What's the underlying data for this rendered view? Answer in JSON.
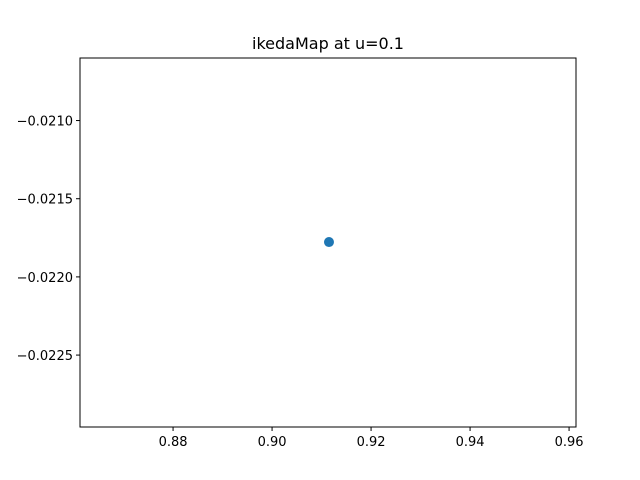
{
  "chart_data": {
    "type": "scatter",
    "title": "ikedaMap at u=0.1",
    "xlabel": "",
    "ylabel": "",
    "xlim": [
      0.8612,
      0.9614
    ],
    "ylim": [
      -0.02296,
      -0.0206
    ],
    "x_ticks": [
      0.88,
      0.9,
      0.92,
      0.94,
      0.96
    ],
    "x_tick_labels": [
      "0.88",
      "0.90",
      "0.92",
      "0.94",
      "0.96"
    ],
    "y_ticks": [
      -0.021,
      -0.0215,
      -0.022,
      -0.0225
    ],
    "y_tick_labels": [
      "−0.0210",
      "−0.0215",
      "−0.0220",
      "−0.0225"
    ],
    "grid": false,
    "points": [
      {
        "x": 0.9115,
        "y": -0.021777
      }
    ],
    "marker_color": "#1f77b4"
  }
}
